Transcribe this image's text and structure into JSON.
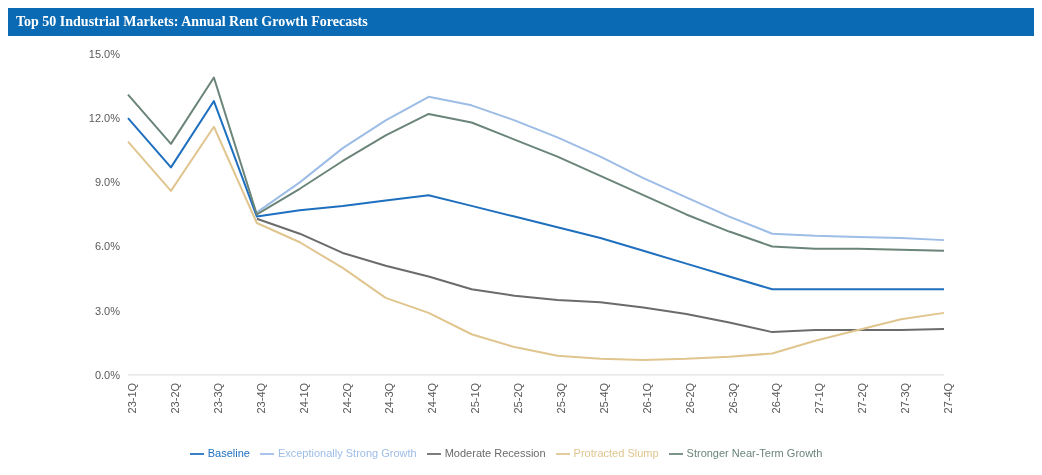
{
  "chart_data": {
    "type": "line",
    "title": "Top 50 Industrial Markets: Annual Rent Growth Forecasts",
    "categories": [
      "23-1Q",
      "23-2Q",
      "23-3Q",
      "23-4Q",
      "24-1Q",
      "24-2Q",
      "24-3Q",
      "24-4Q",
      "25-1Q",
      "25-2Q",
      "25-3Q",
      "25-4Q",
      "26-1Q",
      "26-2Q",
      "26-3Q",
      "26-4Q",
      "27-1Q",
      "27-2Q",
      "27-3Q",
      "27-4Q"
    ],
    "series": [
      {
        "name": "Baseline",
        "color": "#1f6fbf",
        "values": [
          12.0,
          9.7,
          12.8,
          7.4,
          7.7,
          7.9,
          8.15,
          8.4,
          7.9,
          7.4,
          6.9,
          6.4,
          5.8,
          5.2,
          4.6,
          4.0,
          4.0,
          4.0,
          4.0,
          4.0
        ]
      },
      {
        "name": "Exceptionally Strong Growth",
        "color": "#9dbde6",
        "values": [
          null,
          null,
          null,
          7.6,
          9.0,
          10.6,
          11.9,
          13.0,
          12.6,
          11.9,
          11.1,
          10.2,
          9.2,
          8.3,
          7.4,
          6.6,
          6.5,
          6.45,
          6.4,
          6.3
        ]
      },
      {
        "name": "Moderate Recession",
        "color": "#6b6b6b",
        "values": [
          null,
          null,
          null,
          7.3,
          6.6,
          5.7,
          5.1,
          4.6,
          4.0,
          3.7,
          3.5,
          3.4,
          3.15,
          2.85,
          2.45,
          2.0,
          2.1,
          2.1,
          2.1,
          2.15
        ]
      },
      {
        "name": "Protracted Slump",
        "color": "#e0c58f",
        "values": [
          10.9,
          8.6,
          11.6,
          7.1,
          6.2,
          5.0,
          3.6,
          2.9,
          1.9,
          1.3,
          0.9,
          0.75,
          0.7,
          0.75,
          0.85,
          1.0,
          1.6,
          2.1,
          2.6,
          2.9
        ]
      },
      {
        "name": "Stronger Near-Term Growth",
        "color": "#6b8579",
        "values": [
          13.1,
          10.8,
          13.9,
          7.5,
          8.7,
          10.0,
          11.2,
          12.2,
          11.8,
          11.0,
          10.2,
          9.3,
          8.4,
          7.5,
          6.7,
          6.0,
          5.9,
          5.9,
          5.85,
          5.8
        ]
      }
    ],
    "ylim": [
      0,
      15
    ],
    "yticks": [
      {
        "value": 0,
        "label": "0.0%"
      },
      {
        "value": 3,
        "label": "3.0%"
      },
      {
        "value": 6,
        "label": "6.0%"
      },
      {
        "value": 9,
        "label": "9.0%"
      },
      {
        "value": 12,
        "label": "12.0%"
      },
      {
        "value": 15,
        "label": "15.0%"
      }
    ],
    "grid": false,
    "legend": "bottom",
    "marker": "none",
    "line_style": "solid"
  }
}
